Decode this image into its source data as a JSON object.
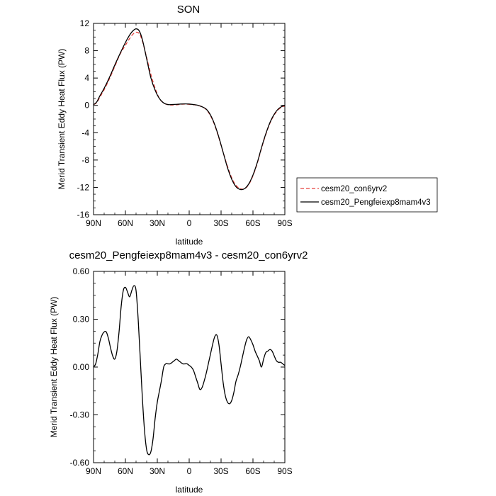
{
  "chart_data": [
    {
      "type": "line",
      "title": "SON",
      "xlabel": "latitude",
      "ylabel": "Merid Transient Eddy Heat Flux (PW)",
      "xlim": [
        90,
        -90
      ],
      "ylim": [
        -16,
        12
      ],
      "x_tick_values": [
        90,
        60,
        30,
        0,
        -30,
        -60,
        -90
      ],
      "x_tick_labels": [
        "90N",
        "60N",
        "30N",
        "0",
        "30S",
        "60S",
        "90S"
      ],
      "y_tick_values": [
        12,
        8,
        4,
        0,
        -4,
        -8,
        -12,
        -16
      ],
      "y_tick_labels": [
        "12",
        "8",
        "4",
        "0",
        "-4",
        "-8",
        "-12",
        "-16"
      ],
      "legend_position": "right",
      "series": [
        {
          "name": "cesm20_con6yrv2",
          "color": "#e8413c",
          "dash": "dashed",
          "x": [
            90,
            87,
            84,
            80,
            75,
            70,
            65,
            60,
            56,
            53,
            50,
            47,
            44,
            40,
            36,
            32,
            28,
            24,
            20,
            16,
            12,
            8,
            4,
            0,
            -4,
            -8,
            -12,
            -16,
            -20,
            -24,
            -28,
            -32,
            -36,
            -40,
            -44,
            -48,
            -52,
            -56,
            -60,
            -64,
            -68,
            -72,
            -76,
            -80,
            -84,
            -88,
            -90
          ],
          "y": [
            0.1,
            0.4,
            1.2,
            2.3,
            3.9,
            5.7,
            7.5,
            8.8,
            9.8,
            10.4,
            10.7,
            10.5,
            9.4,
            7.0,
            4.5,
            2.5,
            1.0,
            0.35,
            0.1,
            0.05,
            0.08,
            0.15,
            0.2,
            0.15,
            0.1,
            0.0,
            -0.2,
            -0.6,
            -1.5,
            -2.9,
            -4.8,
            -6.9,
            -8.9,
            -10.6,
            -11.7,
            -12.2,
            -12.2,
            -11.6,
            -10.3,
            -8.5,
            -6.3,
            -4.3,
            -2.6,
            -1.4,
            -0.6,
            -0.2,
            -0.1
          ]
        },
        {
          "name": "cesm20_Pengfeiexp8mam4v3",
          "color": "#000000",
          "dash": "solid",
          "x": [
            90,
            87,
            84,
            80,
            75,
            70,
            65,
            60,
            56,
            53,
            50,
            47,
            44,
            40,
            36,
            32,
            28,
            24,
            20,
            16,
            12,
            8,
            4,
            0,
            -4,
            -8,
            -12,
            -16,
            -20,
            -24,
            -28,
            -32,
            -36,
            -40,
            -44,
            -48,
            -52,
            -56,
            -60,
            -64,
            -68,
            -72,
            -76,
            -80,
            -84,
            -88,
            -90
          ],
          "y": [
            0.1,
            0.5,
            1.4,
            2.5,
            4.1,
            5.9,
            7.6,
            9.2,
            10.3,
            10.9,
            11.2,
            10.9,
            9.6,
            6.8,
            4.0,
            2.2,
            1.0,
            0.35,
            0.12,
            0.12,
            0.15,
            0.2,
            0.22,
            0.2,
            0.12,
            0.02,
            -0.2,
            -0.55,
            -1.4,
            -2.8,
            -4.7,
            -6.9,
            -9.1,
            -10.8,
            -11.9,
            -12.3,
            -12.2,
            -11.5,
            -10.2,
            -8.4,
            -6.2,
            -4.2,
            -2.5,
            -1.3,
            -0.5,
            -0.1,
            0.0
          ]
        }
      ]
    },
    {
      "type": "line",
      "title": "cesm20_Pengfeiexp8mam4v3 - cesm20_con6yrv2",
      "xlabel": "latitude",
      "ylabel": "Merid Transient Eddy Heat Flux (PW)",
      "xlim": [
        90,
        -90
      ],
      "ylim": [
        -0.6,
        0.6
      ],
      "x_tick_values": [
        90,
        60,
        30,
        0,
        -30,
        -60,
        -90
      ],
      "x_tick_labels": [
        "90N",
        "60N",
        "30N",
        "0",
        "30S",
        "60S",
        "90S"
      ],
      "y_tick_values": [
        0.6,
        0.3,
        0.0,
        -0.3,
        -0.6
      ],
      "y_tick_labels": [
        "0.60",
        "0.30",
        "0.00",
        "-0.30",
        "-0.60"
      ],
      "series": [
        {
          "color": "#000000",
          "dash": "solid",
          "x": [
            90,
            88,
            86,
            84,
            82,
            80,
            78,
            76,
            74,
            72,
            70,
            68,
            66,
            64,
            62,
            60,
            58,
            56,
            54,
            52,
            50,
            48,
            46,
            44,
            42,
            40,
            38,
            36,
            34,
            32,
            30,
            28,
            26,
            24,
            22,
            20,
            18,
            16,
            14,
            12,
            10,
            8,
            6,
            4,
            2,
            0,
            -2,
            -4,
            -6,
            -8,
            -10,
            -12,
            -14,
            -16,
            -18,
            -20,
            -22,
            -24,
            -26,
            -28,
            -30,
            -32,
            -34,
            -36,
            -38,
            -40,
            -42,
            -44,
            -46,
            -48,
            -50,
            -52,
            -54,
            -56,
            -58,
            -60,
            -62,
            -64,
            -66,
            -68,
            -70,
            -72,
            -74,
            -76,
            -78,
            -80,
            -82,
            -84,
            -86,
            -88,
            -90
          ],
          "y": [
            0.0,
            0.02,
            0.08,
            0.16,
            0.2,
            0.22,
            0.22,
            0.18,
            0.12,
            0.07,
            0.05,
            0.1,
            0.22,
            0.38,
            0.48,
            0.5,
            0.47,
            0.44,
            0.48,
            0.51,
            0.48,
            0.3,
            0.05,
            -0.2,
            -0.4,
            -0.52,
            -0.55,
            -0.53,
            -0.45,
            -0.32,
            -0.22,
            -0.15,
            -0.08,
            0.0,
            0.02,
            0.02,
            0.02,
            0.03,
            0.04,
            0.05,
            0.04,
            0.03,
            0.02,
            0.02,
            0.02,
            0.01,
            0.0,
            -0.02,
            -0.06,
            -0.1,
            -0.14,
            -0.13,
            -0.09,
            -0.04,
            0.02,
            0.08,
            0.14,
            0.19,
            0.2,
            0.14,
            0.02,
            -0.1,
            -0.18,
            -0.22,
            -0.23,
            -0.21,
            -0.16,
            -0.09,
            -0.05,
            0.0,
            0.06,
            0.12,
            0.17,
            0.19,
            0.17,
            0.14,
            0.1,
            0.07,
            0.04,
            0.0,
            0.05,
            0.09,
            0.1,
            0.11,
            0.1,
            0.07,
            0.04,
            0.03,
            0.03,
            0.02,
            0.01
          ]
        }
      ]
    }
  ]
}
